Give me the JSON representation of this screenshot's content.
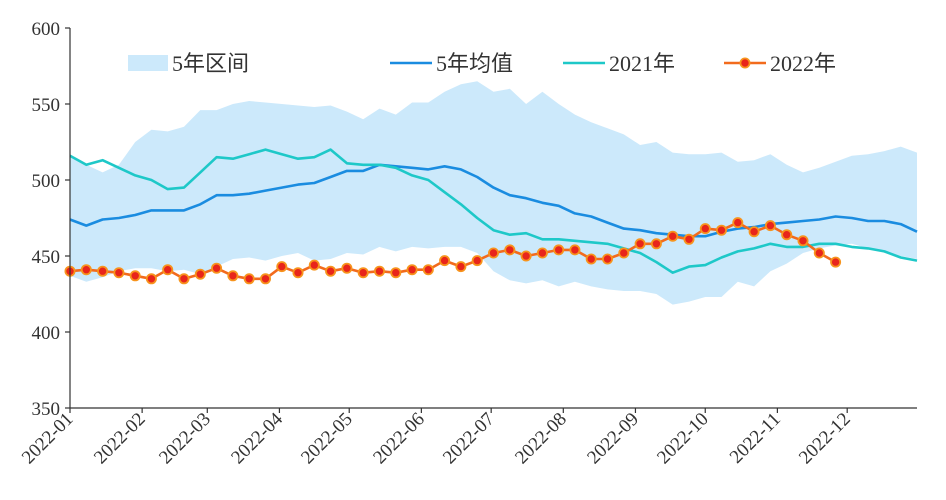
{
  "chart_data": {
    "type": "line",
    "title": "",
    "xlabel": "",
    "ylabel": "",
    "ylim": [
      350,
      600
    ],
    "yticks": [
      350,
      400,
      450,
      500,
      550,
      600
    ],
    "xlim": [
      "2022-01-01",
      "2022-12-31"
    ],
    "xticks": [
      "2022-01",
      "2022-02",
      "2022-03",
      "2022-04",
      "2022-05",
      "2022-06",
      "2022-07",
      "2022-08",
      "2022-09",
      "2022-10",
      "2022-11",
      "2022-12"
    ],
    "grid": false,
    "legend_position": "top",
    "colors": {
      "band": "#cce9fb",
      "avg": "#1a8ce0",
      "y2021": "#1ec8c8",
      "y2022_line": "#f26b1d",
      "y2022_marker_fill": "#e8251b",
      "y2022_marker_edge": "#f7941d",
      "axis": "#333333"
    },
    "series": [
      {
        "name": "5年区间",
        "kind": "band",
        "x": [
          "2022-01-01",
          "2022-01-08",
          "2022-01-15",
          "2022-01-22",
          "2022-01-29",
          "2022-02-05",
          "2022-02-12",
          "2022-02-19",
          "2022-02-26",
          "2022-03-05",
          "2022-03-12",
          "2022-03-19",
          "2022-03-26",
          "2022-04-02",
          "2022-04-09",
          "2022-04-16",
          "2022-04-23",
          "2022-04-30",
          "2022-05-07",
          "2022-05-14",
          "2022-05-21",
          "2022-05-28",
          "2022-06-04",
          "2022-06-11",
          "2022-06-18",
          "2022-06-25",
          "2022-07-02",
          "2022-07-09",
          "2022-07-16",
          "2022-07-23",
          "2022-07-30",
          "2022-08-06",
          "2022-08-13",
          "2022-08-20",
          "2022-08-27",
          "2022-09-03",
          "2022-09-10",
          "2022-09-17",
          "2022-09-24",
          "2022-10-01",
          "2022-10-08",
          "2022-10-15",
          "2022-10-22",
          "2022-10-29",
          "2022-11-05",
          "2022-11-12",
          "2022-11-19",
          "2022-11-26",
          "2022-12-03",
          "2022-12-10",
          "2022-12-17",
          "2022-12-24",
          "2022-12-31"
        ],
        "upper": [
          516,
          510,
          505,
          510,
          525,
          533,
          532,
          535,
          546,
          546,
          550,
          552,
          551,
          550,
          549,
          548,
          549,
          545,
          540,
          547,
          543,
          551,
          551,
          558,
          563,
          565,
          558,
          560,
          550,
          558,
          550,
          543,
          538,
          534,
          530,
          523,
          525,
          518,
          517,
          517,
          518,
          512,
          513,
          517,
          510,
          505,
          508,
          512,
          516,
          517,
          519,
          522,
          518
        ],
        "lower": [
          437,
          433,
          436,
          440,
          442,
          442,
          440,
          441,
          438,
          443,
          448,
          449,
          447,
          450,
          452,
          447,
          448,
          452,
          451,
          456,
          453,
          456,
          455,
          456,
          456,
          452,
          440,
          434,
          432,
          434,
          430,
          433,
          430,
          428,
          427,
          427,
          425,
          418,
          420,
          423,
          423,
          433,
          430,
          440,
          445,
          452,
          455,
          457,
          458,
          455,
          453,
          450,
          448
        ]
      },
      {
        "name": "5年均值",
        "kind": "line",
        "x": [
          "2022-01-01",
          "2022-01-08",
          "2022-01-15",
          "2022-01-22",
          "2022-01-29",
          "2022-02-05",
          "2022-02-12",
          "2022-02-19",
          "2022-02-26",
          "2022-03-05",
          "2022-03-12",
          "2022-03-19",
          "2022-03-26",
          "2022-04-02",
          "2022-04-09",
          "2022-04-16",
          "2022-04-23",
          "2022-04-30",
          "2022-05-07",
          "2022-05-14",
          "2022-05-21",
          "2022-05-28",
          "2022-06-04",
          "2022-06-11",
          "2022-06-18",
          "2022-06-25",
          "2022-07-02",
          "2022-07-09",
          "2022-07-16",
          "2022-07-23",
          "2022-07-30",
          "2022-08-06",
          "2022-08-13",
          "2022-08-20",
          "2022-08-27",
          "2022-09-03",
          "2022-09-10",
          "2022-09-17",
          "2022-09-24",
          "2022-10-01",
          "2022-10-08",
          "2022-10-15",
          "2022-10-22",
          "2022-10-29",
          "2022-11-05",
          "2022-11-12",
          "2022-11-19",
          "2022-11-26",
          "2022-12-03",
          "2022-12-10",
          "2022-12-17",
          "2022-12-24",
          "2022-12-31"
        ],
        "values": [
          474,
          470,
          474,
          475,
          477,
          480,
          480,
          480,
          484,
          490,
          490,
          491,
          493,
          495,
          497,
          498,
          502,
          506,
          506,
          510,
          509,
          508,
          507,
          509,
          507,
          502,
          495,
          490,
          488,
          485,
          483,
          478,
          476,
          472,
          468,
          467,
          465,
          464,
          463,
          463,
          466,
          468,
          469,
          471,
          472,
          473,
          474,
          476,
          475,
          473,
          473,
          471,
          466
        ]
      },
      {
        "name": "2021年",
        "kind": "line",
        "x": [
          "2022-01-01",
          "2022-01-08",
          "2022-01-15",
          "2022-01-22",
          "2022-01-29",
          "2022-02-05",
          "2022-02-12",
          "2022-02-19",
          "2022-02-26",
          "2022-03-05",
          "2022-03-12",
          "2022-03-19",
          "2022-03-26",
          "2022-04-02",
          "2022-04-09",
          "2022-04-16",
          "2022-04-23",
          "2022-04-30",
          "2022-05-07",
          "2022-05-14",
          "2022-05-21",
          "2022-05-28",
          "2022-06-04",
          "2022-06-11",
          "2022-06-18",
          "2022-06-25",
          "2022-07-02",
          "2022-07-09",
          "2022-07-16",
          "2022-07-23",
          "2022-07-30",
          "2022-08-06",
          "2022-08-13",
          "2022-08-20",
          "2022-08-27",
          "2022-09-03",
          "2022-09-10",
          "2022-09-17",
          "2022-09-24",
          "2022-10-01",
          "2022-10-08",
          "2022-10-15",
          "2022-10-22",
          "2022-10-29",
          "2022-11-05",
          "2022-11-12",
          "2022-11-19",
          "2022-11-26",
          "2022-12-03",
          "2022-12-10",
          "2022-12-17",
          "2022-12-24",
          "2022-12-31"
        ],
        "values": [
          516,
          510,
          513,
          508,
          503,
          500,
          494,
          495,
          505,
          515,
          514,
          517,
          520,
          517,
          514,
          515,
          520,
          511,
          510,
          510,
          508,
          503,
          500,
          492,
          484,
          475,
          467,
          464,
          465,
          461,
          461,
          460,
          459,
          458,
          455,
          452,
          446,
          439,
          443,
          444,
          449,
          453,
          455,
          458,
          456,
          456,
          458,
          458,
          456,
          455,
          453,
          449,
          447
        ]
      },
      {
        "name": "2022年",
        "kind": "line-marker",
        "x": [
          "2022-01-01",
          "2022-01-08",
          "2022-01-15",
          "2022-01-22",
          "2022-01-29",
          "2022-02-05",
          "2022-02-12",
          "2022-02-19",
          "2022-02-26",
          "2022-03-05",
          "2022-03-12",
          "2022-03-19",
          "2022-03-26",
          "2022-04-02",
          "2022-04-09",
          "2022-04-16",
          "2022-04-23",
          "2022-04-30",
          "2022-05-07",
          "2022-05-14",
          "2022-05-21",
          "2022-05-28",
          "2022-06-04",
          "2022-06-11",
          "2022-06-18",
          "2022-06-25",
          "2022-07-02",
          "2022-07-09",
          "2022-07-16",
          "2022-07-23",
          "2022-07-30",
          "2022-08-06",
          "2022-08-13",
          "2022-08-20",
          "2022-08-27",
          "2022-09-03",
          "2022-09-10",
          "2022-09-17",
          "2022-09-24",
          "2022-10-01",
          "2022-10-08",
          "2022-10-15",
          "2022-10-22",
          "2022-10-29",
          "2022-11-05",
          "2022-11-12",
          "2022-11-19",
          "2022-11-26"
        ],
        "values": [
          440,
          441,
          440,
          439,
          437,
          435,
          441,
          435,
          438,
          442,
          437,
          435,
          435,
          443,
          439,
          444,
          440,
          442,
          439,
          440,
          439,
          441,
          441,
          447,
          443,
          447,
          452,
          454,
          450,
          452,
          454,
          454,
          448,
          448,
          452,
          458,
          458,
          463,
          461,
          468,
          467,
          472,
          466,
          470,
          464,
          460,
          452,
          446
        ]
      }
    ]
  }
}
